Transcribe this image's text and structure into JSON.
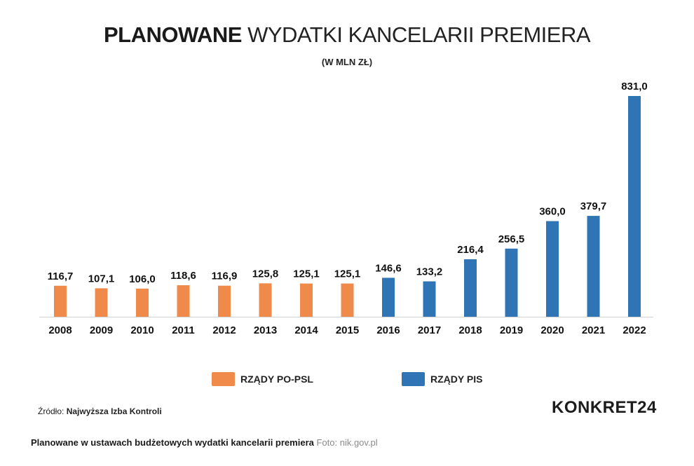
{
  "title_bold": "PLANOWANE",
  "title_rest": "WYDATKI KANCELARII PREMIERA",
  "subtitle": "(W MLN ZŁ)",
  "legend": [
    {
      "label": "RZĄDY PO-PSL",
      "color": "#f08a4b"
    },
    {
      "label": "RZĄDY PIS",
      "color": "#2f75b5"
    }
  ],
  "source_prefix": "Źródło:",
  "source_name": "Najwyższa Izba Kontroli",
  "brand": "KONKRET24",
  "caption_main": "Planowane w ustawach budżetowych wydatki kancelarii premiera",
  "caption_credit": "Foto: nik.gov.pl",
  "chart_data": {
    "type": "bar",
    "categories": [
      "2008",
      "2009",
      "2010",
      "2011",
      "2012",
      "2013",
      "2014",
      "2015",
      "2016",
      "2017",
      "2018",
      "2019",
      "2020",
      "2021",
      "2022"
    ],
    "values": [
      116.7,
      107.1,
      106.0,
      118.6,
      116.9,
      125.8,
      125.1,
      125.1,
      146.6,
      133.2,
      216.4,
      256.5,
      360.0,
      379.7,
      831.0
    ],
    "value_labels": [
      "116,7",
      "107,1",
      "106,0",
      "118,6",
      "116,9",
      "125,8",
      "125,1",
      "125,1",
      "146,6",
      "133,2",
      "216,4",
      "256,5",
      "360,0",
      "379,7",
      "831,0"
    ],
    "groups": [
      "RZĄDY PO-PSL",
      "RZĄDY PO-PSL",
      "RZĄDY PO-PSL",
      "RZĄDY PO-PSL",
      "RZĄDY PO-PSL",
      "RZĄDY PO-PSL",
      "RZĄDY PO-PSL",
      "RZĄDY PO-PSL",
      "RZĄDY PIS",
      "RZĄDY PIS",
      "RZĄDY PIS",
      "RZĄDY PIS",
      "RZĄDY PIS",
      "RZĄDY PIS",
      "RZĄDY PIS"
    ],
    "title": "PLANOWANE WYDATKI KANCELARII PREMIERA",
    "subtitle": "(W MLN ZŁ)",
    "ylim": [
      0,
      831.0
    ],
    "grid": false,
    "legend_position": "bottom"
  }
}
